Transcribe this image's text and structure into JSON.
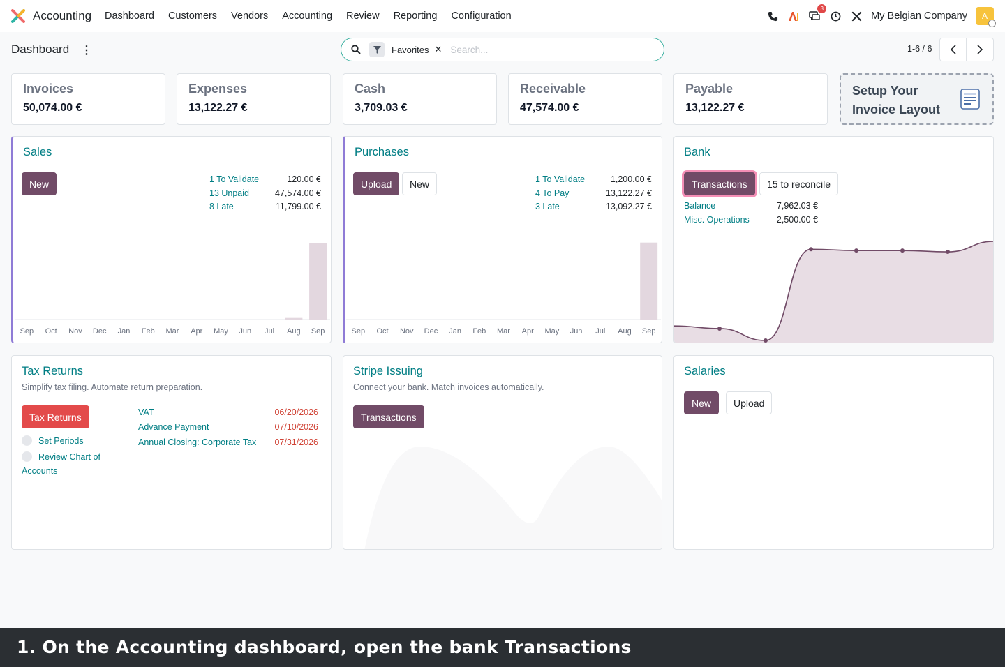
{
  "nav": {
    "app_name": "Accounting",
    "menu": [
      "Dashboard",
      "Customers",
      "Vendors",
      "Accounting",
      "Review",
      "Reporting",
      "Configuration"
    ],
    "activity_badge": "3",
    "company": "My Belgian Company",
    "avatar_letter": "A"
  },
  "control": {
    "breadcrumb": "Dashboard",
    "facet": "Favorites",
    "search_placeholder": "Search...",
    "pager": "1-6 / 6"
  },
  "kpis": [
    {
      "title": "Invoices",
      "value": "50,074.00 €"
    },
    {
      "title": "Expenses",
      "value": "13,122.27 €"
    },
    {
      "title": "Cash",
      "value": "3,709.03 €"
    },
    {
      "title": "Receivable",
      "value": "47,574.00 €"
    },
    {
      "title": "Payable",
      "value": "13,122.27 €"
    }
  ],
  "setup": {
    "line1": "Setup Your",
    "line2": "Invoice Layout"
  },
  "sales": {
    "title": "Sales",
    "new_label": "New",
    "stats": [
      {
        "label": "1 To Validate",
        "value": "120.00 €"
      },
      {
        "label": "13 Unpaid",
        "value": "47,574.00 €"
      },
      {
        "label": "8 Late",
        "value": "11,799.00 €"
      }
    ],
    "chart_data": {
      "type": "bar",
      "categories": [
        "Sep",
        "Oct",
        "Nov",
        "Dec",
        "Jan",
        "Feb",
        "Mar",
        "Apr",
        "May",
        "Jun",
        "Jul",
        "Aug",
        "Sep"
      ],
      "values": [
        0,
        0,
        0,
        0,
        0,
        0,
        0,
        0,
        0,
        0,
        0,
        1,
        47
      ]
    }
  },
  "purchases": {
    "title": "Purchases",
    "upload_label": "Upload",
    "new_label": "New",
    "stats": [
      {
        "label": "1 To Validate",
        "value": "1,200.00 €"
      },
      {
        "label": "4 To Pay",
        "value": "13,122.27 €"
      },
      {
        "label": "3 Late",
        "value": "13,092.27 €"
      }
    ],
    "chart_data": {
      "type": "bar",
      "categories": [
        "Sep",
        "Oct",
        "Nov",
        "Dec",
        "Jan",
        "Feb",
        "Mar",
        "Apr",
        "May",
        "Jun",
        "Jul",
        "Aug",
        "Sep"
      ],
      "values": [
        0,
        0,
        0,
        0,
        0,
        0,
        0,
        0,
        0,
        0,
        0,
        0,
        13
      ]
    }
  },
  "bank": {
    "title": "Bank",
    "transactions_label": "Transactions",
    "reconcile_label": "15 to reconcile",
    "stats": [
      {
        "label": "Balance",
        "value": "7,962.03 €"
      },
      {
        "label": "Misc. Operations",
        "value": "2,500.00 €"
      }
    ],
    "chart_data": {
      "type": "area",
      "values": [
        1100,
        900,
        0,
        6900,
        6800,
        6800,
        6700,
        7500
      ]
    }
  },
  "tax": {
    "title": "Tax Returns",
    "subtitle": "Simplify tax filing. Automate return preparation.",
    "button": "Tax Returns",
    "steps": [
      "Set Periods",
      "Review Chart of",
      "Accounts"
    ],
    "items": [
      {
        "label": "VAT",
        "date": "06/20/2026"
      },
      {
        "label": "Advance Payment",
        "date": "07/10/2026"
      },
      {
        "label": "Annual Closing: Corporate Tax",
        "date": "07/31/2026"
      }
    ]
  },
  "stripe": {
    "title": "Stripe Issuing",
    "subtitle": "Connect your bank. Match invoices automatically.",
    "button": "Transactions"
  },
  "salaries": {
    "title": "Salaries",
    "new_label": "New",
    "upload_label": "Upload"
  },
  "caption": "1. On the Accounting dashboard, open the bank Transactions",
  "colors": {
    "primary": "#714b67",
    "link": "#017e84",
    "danger": "#e34a4a",
    "chart_fill": "#e8dde4"
  }
}
